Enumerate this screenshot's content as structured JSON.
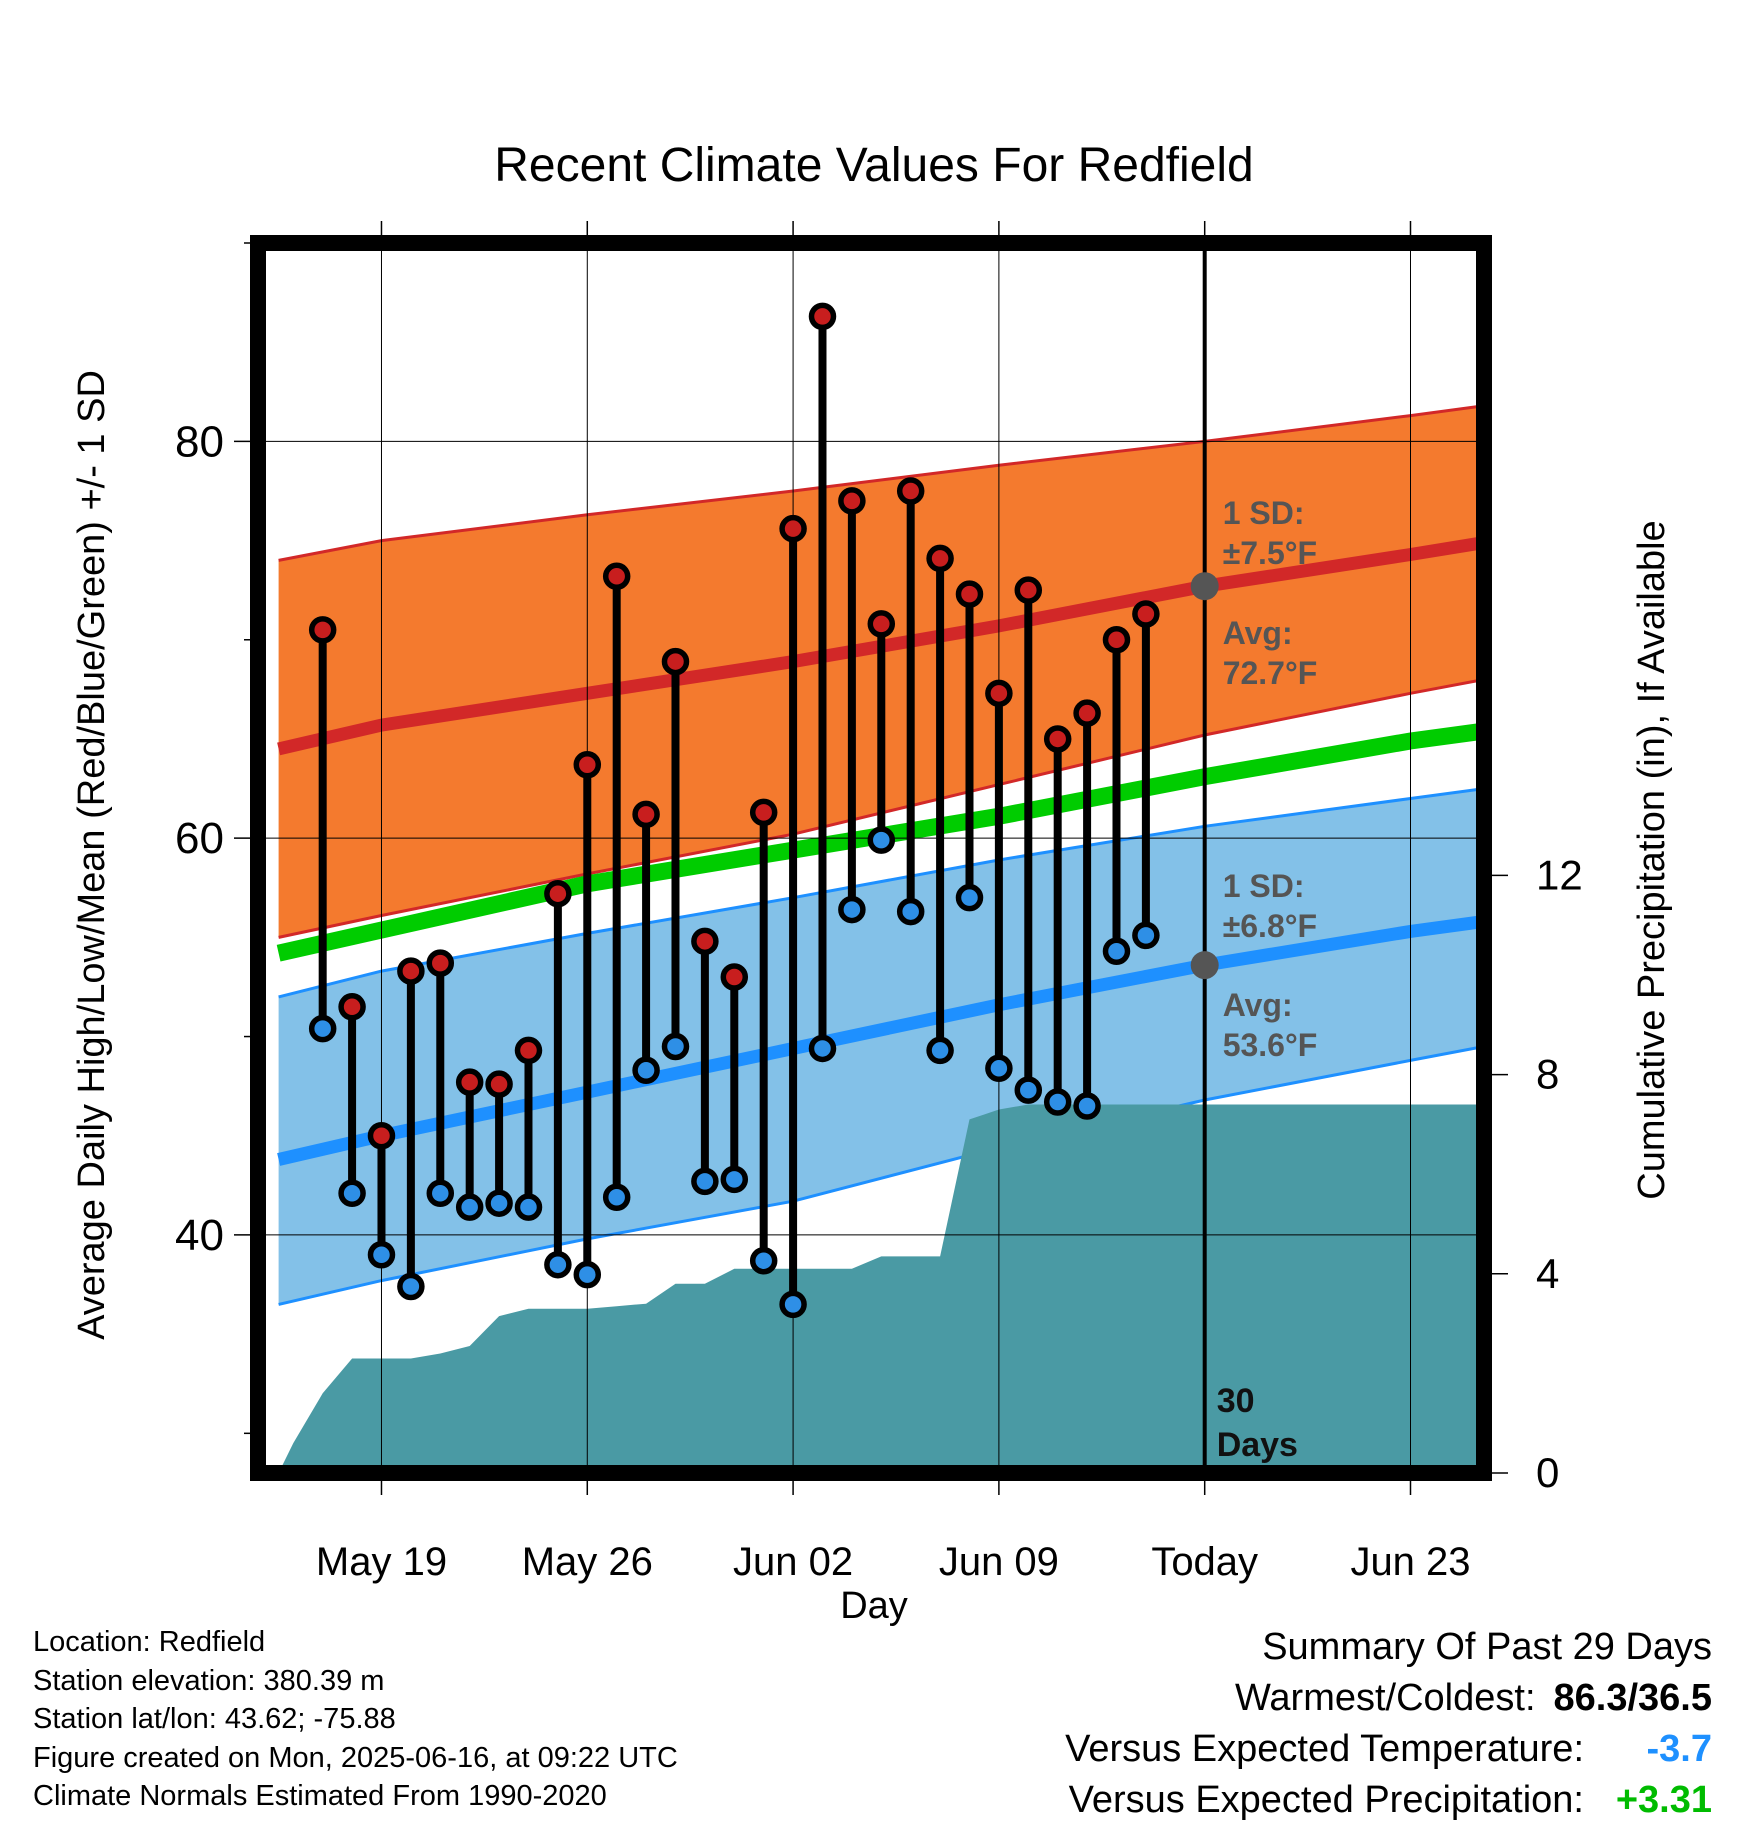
{
  "title": "Recent Climate Values For Redfield",
  "chart_data": {
    "type": "line",
    "title": "Recent Climate Values For Redfield",
    "xlabel": "Day",
    "ylabel": "Average Daily High/Low/Mean (Red/Blue/Green) +/- 1 SD",
    "ylabel_right": "Cumulative Precipitation (in), If Available",
    "x_tick_labels": [
      "May 19",
      "May 26",
      "Jun 02",
      "Jun 09",
      "Today",
      "Jun 23"
    ],
    "y_tick_labels": [
      "40",
      "60",
      "80"
    ],
    "y2_tick_labels": [
      "0",
      "4",
      "8",
      "12"
    ],
    "ylim": [
      28,
      90
    ],
    "y2lim": [
      0,
      24.7
    ],
    "day_range": [
      -32.2,
      9.5
    ],
    "grid": true,
    "today_line_label": [
      "30",
      "Days"
    ],
    "high_sd_label": [
      "1 SD:",
      "±7.5°F"
    ],
    "high_avg_label": [
      "Avg:",
      "72.7°F"
    ],
    "low_sd_label": [
      "1 SD:",
      "±6.8°F"
    ],
    "low_avg_label": [
      "Avg:",
      "53.6°F"
    ],
    "normal_high": {
      "x": [
        -31.5,
        -28,
        -21,
        -14,
        -7,
        0,
        7,
        9.5
      ],
      "y": [
        64.5,
        65.7,
        67.3,
        68.9,
        70.7,
        72.7,
        74.3,
        74.9
      ]
    },
    "normal_high_upper": {
      "x": [
        -31.5,
        -28,
        -21,
        -14,
        -7,
        0,
        7,
        9.5
      ],
      "y": [
        74.0,
        75.0,
        76.3,
        77.5,
        78.8,
        80.0,
        81.3,
        81.8
      ]
    },
    "normal_high_lower": {
      "x": [
        -31.5,
        -28,
        -21,
        -14,
        -7,
        0,
        7,
        9.5
      ],
      "y": [
        55.0,
        56.1,
        58.2,
        60.2,
        62.7,
        65.2,
        67.3,
        68.0
      ]
    },
    "normal_mean": {
      "x": [
        -31.5,
        -21,
        -14,
        -7,
        0,
        7,
        9.5
      ],
      "y": [
        54.2,
        57.7,
        59.4,
        61.1,
        63.1,
        64.9,
        65.4
      ]
    },
    "normal_low": {
      "x": [
        -31.5,
        -28,
        -21,
        -14,
        -7,
        0,
        7,
        9.5
      ],
      "y": [
        43.8,
        45.0,
        47.2,
        49.4,
        51.6,
        53.6,
        55.3,
        55.8
      ]
    },
    "normal_low_upper": {
      "x": [
        -31.5,
        -28,
        -21,
        -14,
        -7,
        0,
        7,
        9.5
      ],
      "y": [
        52.0,
        53.3,
        55.2,
        57.0,
        58.9,
        60.6,
        62.0,
        62.5
      ]
    },
    "normal_low_lower": {
      "x": [
        -31.5,
        -28,
        -21,
        -14,
        -7,
        0,
        7,
        9.5
      ],
      "y": [
        36.5,
        37.7,
        39.8,
        41.7,
        44.4,
        46.8,
        48.8,
        49.5
      ]
    },
    "daily": {
      "x": [
        -30,
        -29,
        -28,
        -27,
        -26,
        -25,
        -24,
        -23,
        -22,
        -21,
        -20,
        -19,
        -18,
        -17,
        -16,
        -15,
        -14,
        -13,
        -12,
        -11,
        -10,
        -9,
        -8,
        -7,
        -6,
        -5,
        -4,
        -3,
        -2
      ],
      "high": [
        70.5,
        51.5,
        45.0,
        53.3,
        53.7,
        47.7,
        47.6,
        49.3,
        57.2,
        63.7,
        73.2,
        61.2,
        68.9,
        54.8,
        53.0,
        61.3,
        75.6,
        86.3,
        77.0,
        70.8,
        77.5,
        74.1,
        72.3,
        67.3,
        72.5,
        65.0,
        66.3,
        70.0,
        71.3
      ],
      "low": [
        50.4,
        42.1,
        39.0,
        37.4,
        42.1,
        41.4,
        41.6,
        41.4,
        38.5,
        38.0,
        41.9,
        48.3,
        49.5,
        42.7,
        42.8,
        38.7,
        36.5,
        49.4,
        56.4,
        59.9,
        56.3,
        49.3,
        57.0,
        48.4,
        47.3,
        46.7,
        46.5,
        54.3,
        55.1
      ]
    },
    "precip": {
      "x": [
        -31.5,
        -31,
        -30,
        -29,
        -28,
        -27,
        -26,
        -25,
        -24,
        -23,
        -22,
        -21,
        -20,
        -19,
        -18,
        -17,
        -16,
        -15,
        -14,
        -13,
        -12,
        -11,
        -10,
        -9,
        -8,
        -7.5,
        -7,
        -6,
        -5,
        -4,
        0,
        9.5
      ],
      "y": [
        0.0,
        0.6,
        1.6,
        2.3,
        2.3,
        2.3,
        2.4,
        2.55,
        3.15,
        3.3,
        3.3,
        3.3,
        3.35,
        3.4,
        3.8,
        3.8,
        4.1,
        4.1,
        4.1,
        4.1,
        4.1,
        4.35,
        4.35,
        4.35,
        7.1,
        7.2,
        7.3,
        7.4,
        7.4,
        7.4,
        7.4,
        7.4
      ]
    }
  },
  "footer_info": {
    "location": "Location: Redfield",
    "elevation": "Station elevation: 380.39 m",
    "latlon": "Station lat/lon: 43.62; -75.88",
    "created": "Figure created on Mon, 2025-06-16, at 09:22 UTC",
    "normals": "Climate Normals Estimated From 1990-2020"
  },
  "summary": {
    "heading": "Summary Of Past 29 Days",
    "warmest_label": "Warmest/Coldest:",
    "warmest_value": "86.3/36.5",
    "temp_label": "Versus Expected Temperature:",
    "temp_value": "-3.7",
    "precip_label": "Versus Expected Precipitation:",
    "precip_value": "+3.31"
  },
  "colors": {
    "high_band": "#f47a2e",
    "high_line": "#d22828",
    "low_band": "#83c1e8",
    "low_line": "#1e90ff",
    "mean_line": "#00cc00",
    "precip_fill": "#4a9aa4",
    "marker_high": "#c81e1e",
    "marker_low": "#2e8fe6",
    "avg_marker": "#555555",
    "annotation_text": "#555555"
  }
}
